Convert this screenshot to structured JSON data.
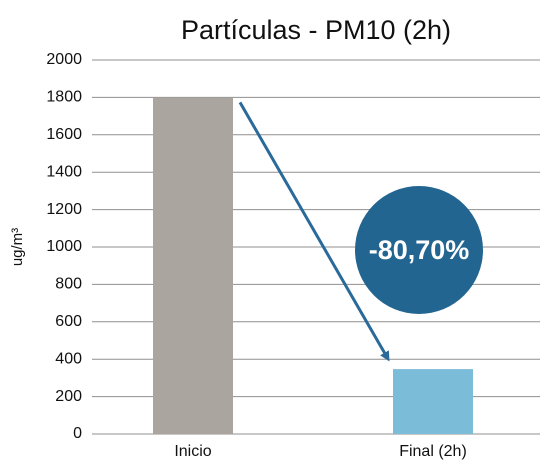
{
  "chart_data": {
    "type": "bar",
    "title": "Partículas - PM10 (2h)",
    "y_label": "ug/m³",
    "categories": [
      "Inicio",
      "Final (2h)"
    ],
    "values": [
      1800,
      347
    ],
    "colors": [
      "#aaa59f",
      "#7bbcd9"
    ],
    "ylim": [
      0,
      2000
    ],
    "yticks": [
      0,
      200,
      400,
      600,
      800,
      1000,
      1200,
      1400,
      1600,
      1800,
      2000
    ],
    "grid": true,
    "annotation": "-80,70%",
    "annotation_color": "#236591"
  }
}
